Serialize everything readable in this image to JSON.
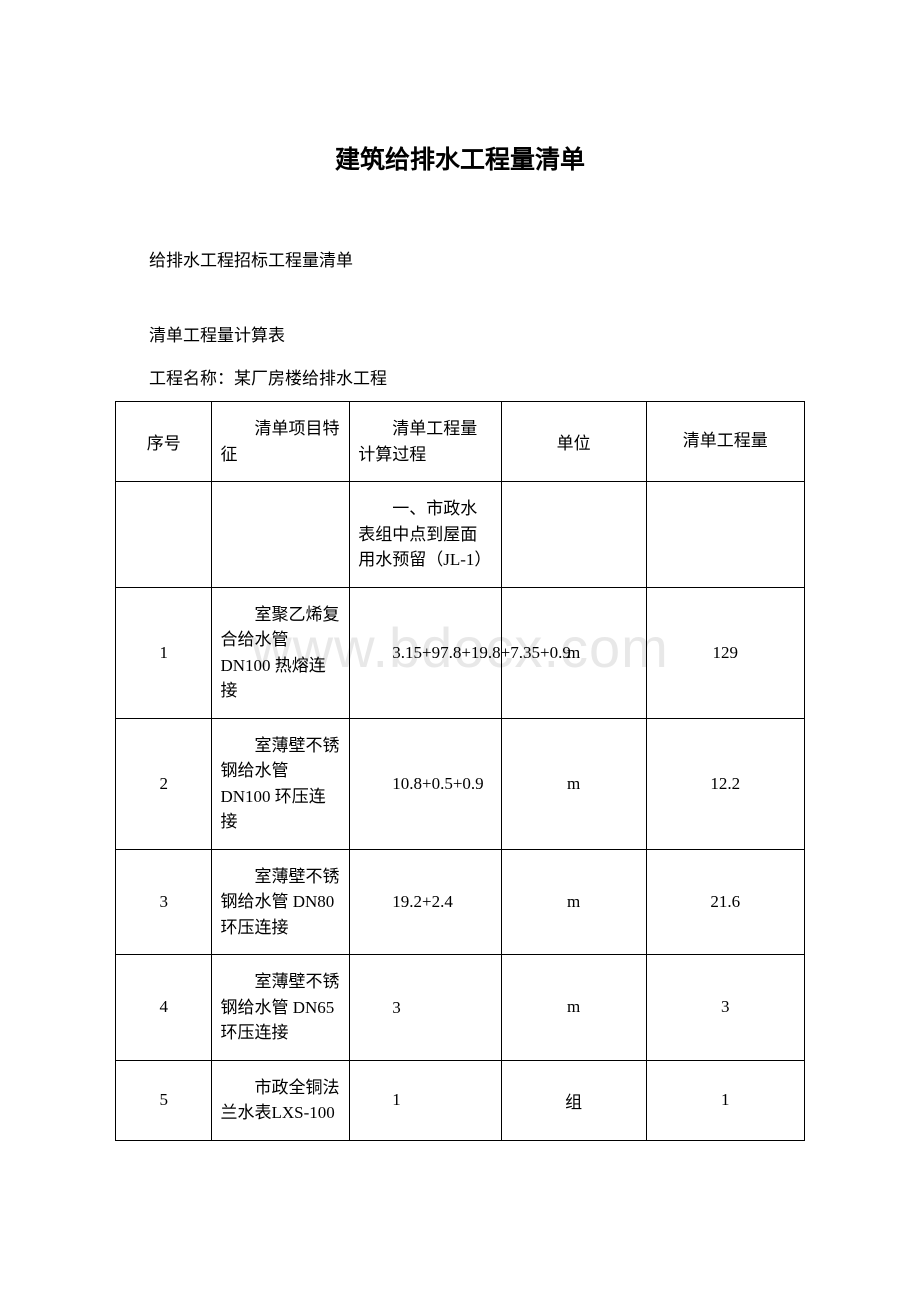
{
  "title": "建筑给排水工程量清单",
  "subtitle": "给排水工程招标工程量清单",
  "table_label": "清单工程量计算表",
  "project_name": "工程名称：某厂房楼给排水工程",
  "watermark": "www.bdocx.com",
  "table": {
    "border_color": "#000000",
    "background_color": "#ffffff",
    "text_color": "#000000",
    "font_size": 17,
    "columns": [
      {
        "key": "seq",
        "label": "序号",
        "width": "14%"
      },
      {
        "key": "feature",
        "label": "清单项目特征",
        "width": "20%"
      },
      {
        "key": "calc",
        "label": "清单工程量计算过程",
        "width": "22%"
      },
      {
        "key": "unit",
        "label": "单位",
        "width": "21%"
      },
      {
        "key": "qty",
        "label": "清单工程量",
        "width": "23%"
      }
    ],
    "rows": [
      {
        "seq": "",
        "feature": "",
        "calc": "一、市政水表组中点到屋面用水预留（JL-1）",
        "unit": "",
        "qty": ""
      },
      {
        "seq": "1",
        "feature": "室聚乙烯复合给水管 DN100 热熔连接",
        "calc": "3.15+97.8+19.8+7.35+0.9",
        "unit": "m",
        "qty": "129"
      },
      {
        "seq": "2",
        "feature": "室薄壁不锈钢给水管 DN100 环压连接",
        "calc": "10.8+0.5+0.9",
        "unit": "m",
        "qty": "12.2"
      },
      {
        "seq": "3",
        "feature": "室薄壁不锈钢给水管 DN80 环压连接",
        "calc": "19.2+2.4",
        "unit": "m",
        "qty": "21.6"
      },
      {
        "seq": "4",
        "feature": "室薄壁不锈钢给水管 DN65 环压连接",
        "calc": "3",
        "unit": "m",
        "qty": "3"
      },
      {
        "seq": "5",
        "feature": "市政全铜法兰水表LXS-100",
        "calc": "1",
        "unit": "组",
        "qty": "1"
      }
    ]
  }
}
